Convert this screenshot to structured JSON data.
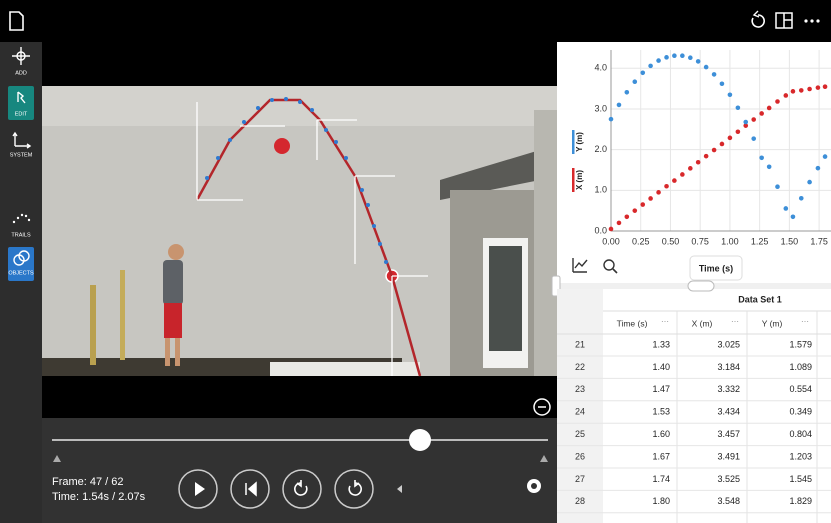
{
  "toolbar": {
    "items": [
      "ADD",
      "EDIT",
      "SYSTEM",
      "TRAILS",
      "OBJECTS"
    ]
  },
  "chart_data": {
    "type": "scatter",
    "x_label": "Time (s)",
    "x": [
      0,
      0.067,
      0.133,
      0.2,
      0.267,
      0.333,
      0.4,
      0.467,
      0.533,
      0.6,
      0.667,
      0.733,
      0.8,
      0.867,
      0.933,
      1.0,
      1.067,
      1.133,
      1.2,
      1.267,
      1.33,
      1.4,
      1.47,
      1.53,
      1.6,
      1.67,
      1.74,
      1.8
    ],
    "series": [
      {
        "name": "X (m)",
        "color": "#d8282b",
        "values": [
          0.05,
          0.2,
          0.35,
          0.5,
          0.65,
          0.8,
          0.95,
          1.1,
          1.24,
          1.39,
          1.54,
          1.69,
          1.84,
          1.99,
          2.14,
          2.29,
          2.44,
          2.59,
          2.74,
          2.89,
          3.025,
          3.184,
          3.332,
          3.434,
          3.457,
          3.491,
          3.525,
          3.548
        ]
      },
      {
        "name": "Y (m)",
        "color": "#3d8fd8",
        "values": [
          2.75,
          3.1,
          3.41,
          3.67,
          3.89,
          4.06,
          4.19,
          4.27,
          4.31,
          4.31,
          4.26,
          4.17,
          4.03,
          3.85,
          3.62,
          3.35,
          3.03,
          2.68,
          2.27,
          1.8,
          1.579,
          1.089,
          0.554,
          0.349,
          0.804,
          1.203,
          1.545,
          1.829
        ]
      }
    ],
    "xlim": [
      0,
      1.85
    ],
    "ylim": [
      0,
      4.45
    ],
    "xticks": [
      {
        "value": 0,
        "label": "0.00"
      },
      {
        "value": 0.25,
        "label": "0.25"
      },
      {
        "value": 0.5,
        "label": "0.50"
      },
      {
        "value": 0.75,
        "label": "0.75"
      },
      {
        "value": 1,
        "label": "1.00"
      },
      {
        "value": 1.25,
        "label": "1.25"
      },
      {
        "value": 1.5,
        "label": "1.50"
      },
      {
        "value": 1.75,
        "label": "1.75"
      }
    ],
    "yticks": [
      {
        "value": 0,
        "label": "0.0"
      },
      {
        "value": 1,
        "label": "1.0"
      },
      {
        "value": 2,
        "label": "2.0"
      },
      {
        "value": 3,
        "label": "3.0"
      },
      {
        "value": 4,
        "label": "4.0"
      }
    ],
    "grid": true
  },
  "table": {
    "title": "Data Set 1",
    "columns": [
      "Time (s)",
      "X (m)",
      "Y (m)"
    ],
    "rows": [
      [
        21,
        "1.33",
        "3.025",
        "1.579"
      ],
      [
        22,
        "1.40",
        "3.184",
        "1.089"
      ],
      [
        23,
        "1.47",
        "3.332",
        "0.554"
      ],
      [
        24,
        "1.53",
        "3.434",
        "0.349"
      ],
      [
        25,
        "1.60",
        "3.457",
        "0.804"
      ],
      [
        26,
        "1.67",
        "3.491",
        "1.203"
      ],
      [
        27,
        "1.74",
        "3.525",
        "1.545"
      ],
      [
        28,
        "1.80",
        "3.548",
        "1.829"
      ]
    ]
  },
  "player": {
    "frame": "Frame: 47 / 62",
    "time": "Time: 1.54s / 2.07s"
  }
}
